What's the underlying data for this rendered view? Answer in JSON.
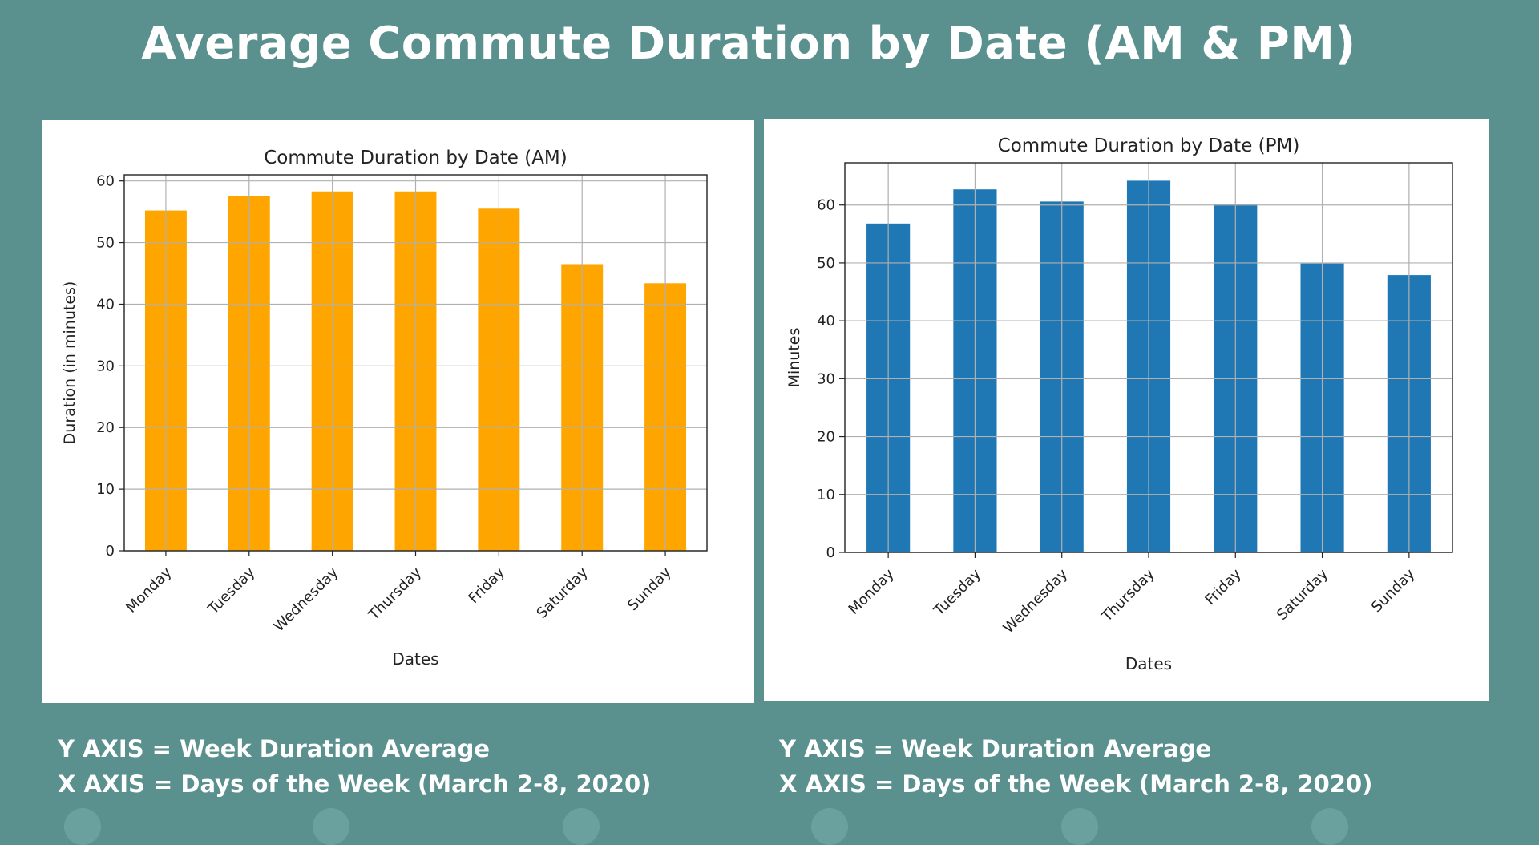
{
  "slide": {
    "title": "Average Commute Duration by Date (AM & PM)",
    "captions": [
      {
        "y_axis": "Y AXIS = Week Duration Average",
        "x_axis": "X AXIS = Days of the Week (March 2-8, 2020)"
      },
      {
        "y_axis": "Y AXIS = Week Duration Average",
        "x_axis": "X AXIS = Days of the Week (March 2-8, 2020)"
      }
    ]
  },
  "chart_data": [
    {
      "type": "bar",
      "title": "Commute Duration by Date (AM)",
      "xlabel": "Dates",
      "ylabel": "Duration (in minutes)",
      "categories": [
        "Monday",
        "Tuesday",
        "Wednesday",
        "Thursday",
        "Friday",
        "Saturday",
        "Sunday"
      ],
      "values": [
        55.2,
        57.5,
        58.3,
        58.3,
        55.5,
        46.5,
        43.4
      ],
      "ylim": [
        0,
        61
      ],
      "yticks": [
        0,
        10,
        20,
        30,
        40,
        50,
        60
      ],
      "grid": true,
      "bar_color": "#ffa500"
    },
    {
      "type": "bar",
      "title": "Commute Duration by Date (PM)",
      "xlabel": "Dates",
      "ylabel": "Minutes",
      "categories": [
        "Monday",
        "Tuesday",
        "Wednesday",
        "Thursday",
        "Friday",
        "Saturday",
        "Sunday"
      ],
      "values": [
        56.8,
        62.7,
        60.6,
        64.2,
        60.1,
        49.9,
        47.9
      ],
      "ylim": [
        0,
        67.3
      ],
      "yticks": [
        0,
        10,
        20,
        30,
        40,
        50,
        60
      ],
      "grid": true,
      "bar_color": "#1f77b4"
    }
  ]
}
